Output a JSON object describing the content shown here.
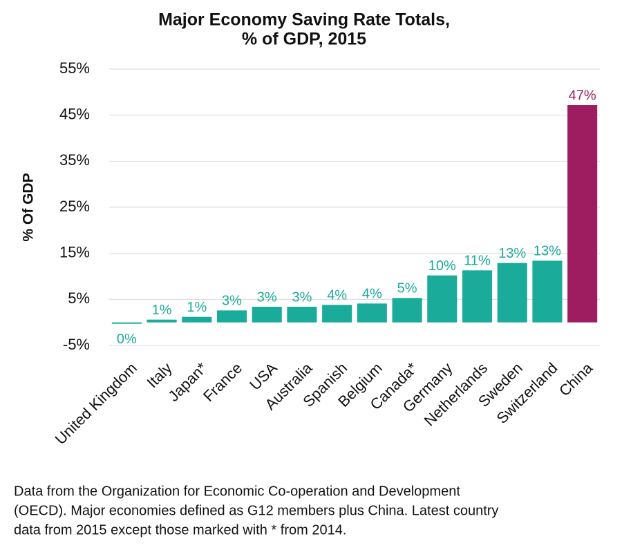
{
  "chart_data": {
    "type": "bar",
    "title": [
      "Major Economy Saving Rate Totals,",
      "% of GDP, 2015"
    ],
    "y_label": "% Of GDP",
    "categories": [
      "United Kingdom",
      "Italy",
      "Japan*",
      "France",
      "USA",
      "Australia",
      "Spanish",
      "Belgium",
      "Canada*",
      "Germany",
      "Netherlands",
      "Sweden",
      "Switzerland",
      "China"
    ],
    "values": [
      -0.3,
      0.6,
      1.2,
      2.6,
      3.4,
      3.4,
      3.8,
      4.1,
      5.3,
      10.2,
      11.3,
      12.9,
      13.4,
      47.2
    ],
    "value_labels": [
      "0%",
      "1%",
      "1%",
      "3%",
      "3%",
      "3%",
      "4%",
      "4%",
      "5%",
      "10%",
      "11%",
      "13%",
      "13%",
      "47%"
    ],
    "colors": [
      "#1aab9b",
      "#1aab9b",
      "#1aab9b",
      "#1aab9b",
      "#1aab9b",
      "#1aab9b",
      "#1aab9b",
      "#1aab9b",
      "#1aab9b",
      "#1aab9b",
      "#1aab9b",
      "#1aab9b",
      "#1aab9b",
      "#9e1c60"
    ],
    "ylim": [
      -5,
      55
    ],
    "yticks": [
      {
        "value": -5,
        "label": "-5%"
      },
      {
        "value": 5,
        "label": "5%"
      },
      {
        "value": 15,
        "label": "15%"
      },
      {
        "value": 25,
        "label": "25%"
      },
      {
        "value": 35,
        "label": "35%"
      },
      {
        "value": 45,
        "label": "45%"
      },
      {
        "value": 55,
        "label": "55%"
      }
    ],
    "grid": true,
    "note": [
      "Data from the Organization for Economic Co-operation and Development",
      "(OECD). Major economies defined as G12 members plus China. Latest country",
      "data from 2015 except those marked with * from 2014."
    ]
  }
}
